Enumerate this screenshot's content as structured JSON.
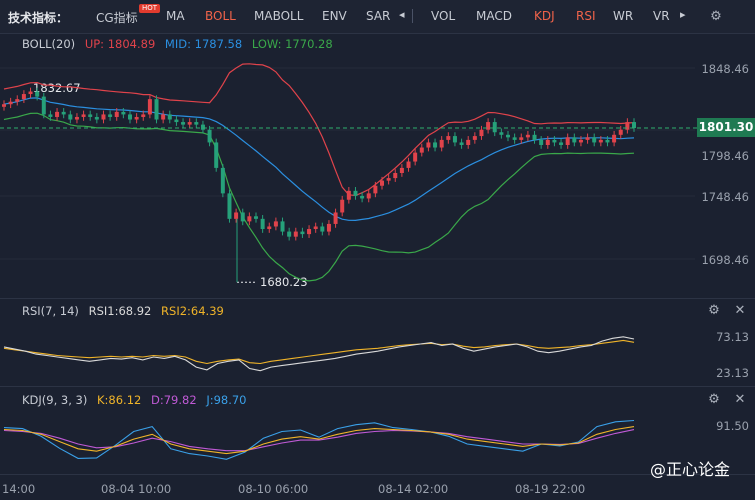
{
  "toolbar": {
    "title": "技术指标：",
    "items": [
      {
        "label": "CG指标",
        "active": false
      },
      {
        "label": "MA",
        "active": false
      },
      {
        "label": "BOLL",
        "active": true
      },
      {
        "label": "MABOLL",
        "active": false
      },
      {
        "label": "ENV",
        "active": false
      },
      {
        "label": "SAR",
        "active": false
      },
      {
        "label": "VOL",
        "active": false
      },
      {
        "label": "MACD",
        "active": false
      },
      {
        "label": "KDJ",
        "active": true
      },
      {
        "label": "RSI",
        "active": true
      },
      {
        "label": "WR",
        "active": false
      },
      {
        "label": "VR",
        "active": false
      }
    ],
    "hot_badge": "HOT",
    "prev_arrow": "◂",
    "next_arrow": "▸",
    "settings_icon": "gear-icon"
  },
  "boll": {
    "name": "BOLL(20)",
    "up": "UP: 1804.89",
    "mid": "MID: 1787.58",
    "low": "LOW: 1770.28",
    "y_ticks": [
      "1848.46",
      "1798.46",
      "1748.46",
      "1698.46"
    ],
    "current_price": "1801.30",
    "high_annotation": "1832.67",
    "low_annotation": "1680.23"
  },
  "rsi": {
    "name": "RSI(7, 14)",
    "rsi1": "RSI1:68.92",
    "rsi2": "RSI2:64.39",
    "y_ticks": [
      "73.13",
      "23.13"
    ]
  },
  "kdj": {
    "name": "KDJ(9, 3, 3)",
    "k": "K:86.12",
    "d": "D:79.82",
    "j": "J:98.70",
    "y_ticks": [
      "91.50"
    ]
  },
  "x_axis": [
    "14:00",
    "08-04 10:00",
    "08-10 06:00",
    "08-14 02:00",
    "08-19 22:00"
  ],
  "watermark": "@正心论金",
  "colors": {
    "up_candle": "#e0434b",
    "down_candle": "#26a17a",
    "boll_up": "#e0434b",
    "boll_mid": "#2b8fe0",
    "boll_low": "#3aa84a",
    "rsi1": "#d9d9d9",
    "rsi2": "#f0b429",
    "k": "#f0b429",
    "d": "#c05ad6",
    "j": "#3aa0e8"
  },
  "chart_data": [
    {
      "type": "candlestick",
      "title": "BOLL(20)",
      "ylim": [
        1680.23,
        1848.46
      ],
      "close": [
        1820,
        1822,
        1824,
        1828,
        1830,
        1826,
        1812,
        1810,
        1814,
        1812,
        1808,
        1810,
        1812,
        1810,
        1808,
        1812,
        1810,
        1814,
        1812,
        1808,
        1810,
        1812,
        1824,
        1808,
        1812,
        1808,
        1806,
        1804,
        1806,
        1804,
        1800,
        1790,
        1770,
        1750,
        1730,
        1735,
        1728,
        1732,
        1730,
        1722,
        1724,
        1728,
        1720,
        1716,
        1720,
        1718,
        1722,
        1724,
        1720,
        1726,
        1735,
        1745,
        1752,
        1748,
        1746,
        1750,
        1756,
        1760,
        1762,
        1766,
        1770,
        1775,
        1782,
        1786,
        1790,
        1786,
        1792,
        1795,
        1790,
        1788,
        1792,
        1795,
        1800,
        1806,
        1798,
        1796,
        1794,
        1792,
        1794,
        1796,
        1792,
        1788,
        1792,
        1790,
        1788,
        1794,
        1790,
        1792,
        1794,
        1790,
        1792,
        1790,
        1796,
        1800,
        1806,
        1801.3
      ],
      "rsi1": [
        58,
        55,
        52,
        48,
        46,
        44,
        42,
        40,
        38,
        40,
        42,
        41,
        43,
        40,
        44,
        42,
        45,
        40,
        30,
        26,
        35,
        38,
        40,
        28,
        25,
        30,
        32,
        34,
        36,
        38,
        40,
        42,
        45,
        48,
        50,
        52,
        55,
        58,
        60,
        62,
        64,
        60,
        62,
        56,
        52,
        55,
        58,
        60,
        62,
        58,
        52,
        50,
        52,
        55,
        58,
        60,
        66,
        70,
        72,
        68.92
      ],
      "rsi2": [
        56,
        54,
        52,
        50,
        48,
        46,
        45,
        44,
        43,
        44,
        45,
        44,
        45,
        44,
        46,
        45,
        46,
        44,
        38,
        35,
        38,
        40,
        41,
        36,
        35,
        38,
        40,
        42,
        44,
        46,
        48,
        50,
        52,
        54,
        55,
        56,
        58,
        60,
        61,
        62,
        63,
        61,
        62,
        59,
        57,
        58,
        60,
        61,
        62,
        60,
        57,
        56,
        57,
        58,
        60,
        61,
        63,
        65,
        67,
        64.39
      ],
      "k": [
        80,
        78,
        70,
        55,
        40,
        35,
        45,
        60,
        70,
        50,
        40,
        35,
        30,
        35,
        50,
        60,
        65,
        60,
        70,
        78,
        82,
        80,
        78,
        75,
        70,
        60,
        55,
        50,
        45,
        50,
        48,
        52,
        70,
        80,
        86.12
      ],
      "d": [
        78,
        76,
        72,
        62,
        50,
        42,
        44,
        52,
        62,
        55,
        45,
        40,
        36,
        36,
        44,
        52,
        58,
        58,
        64,
        72,
        76,
        78,
        77,
        75,
        72,
        65,
        60,
        55,
        50,
        50,
        49,
        51,
        62,
        72,
        79.82
      ],
      "j": [
        84,
        82,
        66,
        41,
        20,
        21,
        47,
        76,
        86,
        40,
        30,
        25,
        18,
        33,
        62,
        76,
        79,
        64,
        82,
        90,
        94,
        84,
        80,
        75,
        66,
        50,
        45,
        40,
        35,
        50,
        46,
        54,
        86,
        96,
        98.7
      ]
    }
  ]
}
